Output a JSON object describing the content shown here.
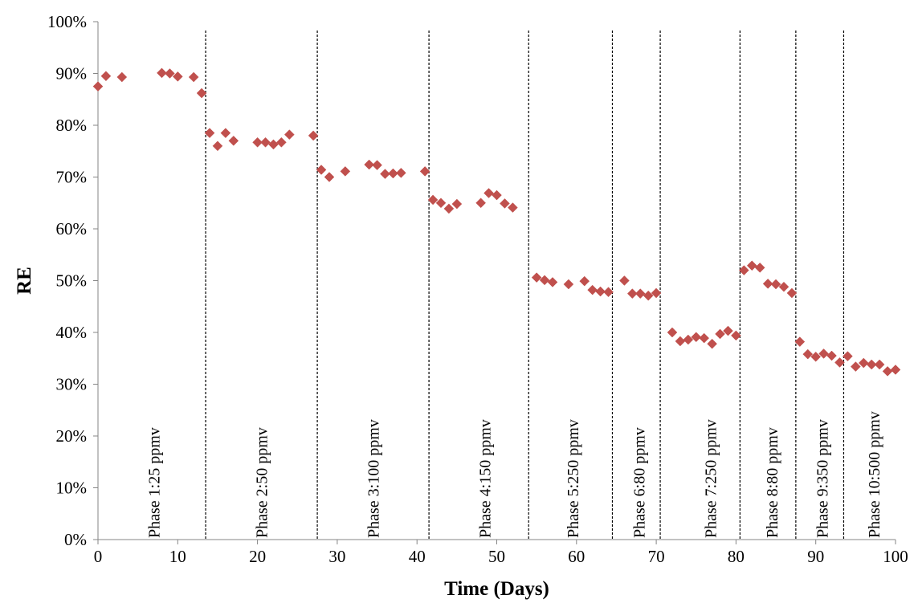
{
  "chart_data": {
    "type": "scatter",
    "title": "",
    "xlabel": "Time (Days)",
    "ylabel": "RE",
    "xlim": [
      0,
      100
    ],
    "ylim": [
      0,
      100
    ],
    "x_ticks": [
      "0",
      "10",
      "20",
      "30",
      "40",
      "50",
      "60",
      "70",
      "80",
      "90",
      "100"
    ],
    "y_ticks": [
      "0%",
      "10%",
      "20%",
      "30%",
      "40%",
      "50%",
      "60%",
      "70%",
      "80%",
      "90%",
      "100%"
    ],
    "grid": false,
    "marker_color": "#c0504d",
    "series": [
      {
        "points": [
          [
            0,
            87.5
          ],
          [
            1,
            89.5
          ],
          [
            3,
            89.3
          ],
          [
            8,
            90.1
          ],
          [
            9,
            90.0
          ],
          [
            10,
            89.4
          ],
          [
            12,
            89.3
          ],
          [
            13,
            86.2
          ],
          [
            14,
            78.5
          ],
          [
            15,
            76.0
          ],
          [
            16,
            78.5
          ],
          [
            17,
            77.0
          ],
          [
            20,
            76.7
          ],
          [
            21,
            76.7
          ],
          [
            22,
            76.3
          ],
          [
            23,
            76.7
          ],
          [
            24,
            78.2
          ],
          [
            27,
            78.0
          ],
          [
            28,
            71.4
          ],
          [
            29,
            70.0
          ],
          [
            31,
            71.1
          ],
          [
            34,
            72.4
          ],
          [
            35,
            72.3
          ],
          [
            36,
            70.6
          ],
          [
            37,
            70.7
          ],
          [
            38,
            70.8
          ],
          [
            41,
            71.1
          ],
          [
            42,
            65.6
          ],
          [
            43,
            65.0
          ],
          [
            44,
            63.9
          ],
          [
            45,
            64.8
          ],
          [
            48,
            65.0
          ],
          [
            49,
            66.9
          ],
          [
            50,
            66.5
          ],
          [
            51,
            64.9
          ],
          [
            52,
            64.1
          ],
          [
            55,
            50.6
          ],
          [
            56,
            50.1
          ],
          [
            57,
            49.7
          ],
          [
            59,
            49.3
          ],
          [
            61,
            49.9
          ],
          [
            62,
            48.2
          ],
          [
            63,
            47.9
          ],
          [
            64,
            47.8
          ],
          [
            66,
            50.0
          ],
          [
            67,
            47.5
          ],
          [
            68,
            47.5
          ],
          [
            69,
            47.1
          ],
          [
            70,
            47.6
          ],
          [
            72,
            40.0
          ],
          [
            73,
            38.3
          ],
          [
            74,
            38.6
          ],
          [
            75,
            39.1
          ],
          [
            76,
            38.9
          ],
          [
            77,
            37.8
          ],
          [
            78,
            39.7
          ],
          [
            79,
            40.3
          ],
          [
            80,
            39.4
          ],
          [
            81,
            52.0
          ],
          [
            82,
            52.9
          ],
          [
            83,
            52.5
          ],
          [
            84,
            49.4
          ],
          [
            85,
            49.3
          ],
          [
            86,
            48.8
          ],
          [
            87,
            47.6
          ],
          [
            88,
            38.2
          ],
          [
            89,
            35.8
          ],
          [
            90,
            35.3
          ],
          [
            91,
            35.9
          ],
          [
            92,
            35.5
          ],
          [
            93,
            34.2
          ],
          [
            94,
            35.4
          ],
          [
            95,
            33.4
          ],
          [
            96,
            34.1
          ],
          [
            97,
            33.8
          ],
          [
            98,
            33.8
          ],
          [
            99,
            32.5
          ],
          [
            100,
            32.8
          ]
        ]
      }
    ],
    "phase_boundaries": [
      13.5,
      27.5,
      41.5,
      54,
      64.5,
      70.5,
      80.5,
      87.5,
      93.5
    ],
    "phases": [
      {
        "label": "Phase 1:25 ppmv",
        "x": 7
      },
      {
        "label": "Phase 2:50 ppmv",
        "x": 20.5
      },
      {
        "label": "Phase 3:100 ppmv",
        "x": 34.5
      },
      {
        "label": "Phase 4:150 ppmv",
        "x": 48.5
      },
      {
        "label": "Phase 5:250 ppmv",
        "x": 59.5
      },
      {
        "label": "Phase 6:80 ppmv",
        "x": 67.8
      },
      {
        "label": "Phase 7:250 ppmv",
        "x": 76.8
      },
      {
        "label": "Phase 8:80 ppmv",
        "x": 84.5
      },
      {
        "label": "Phase 9:350 ppmv",
        "x": 90.8
      },
      {
        "label": "Phase 10:500 ppmv",
        "x": 97.3
      }
    ]
  }
}
